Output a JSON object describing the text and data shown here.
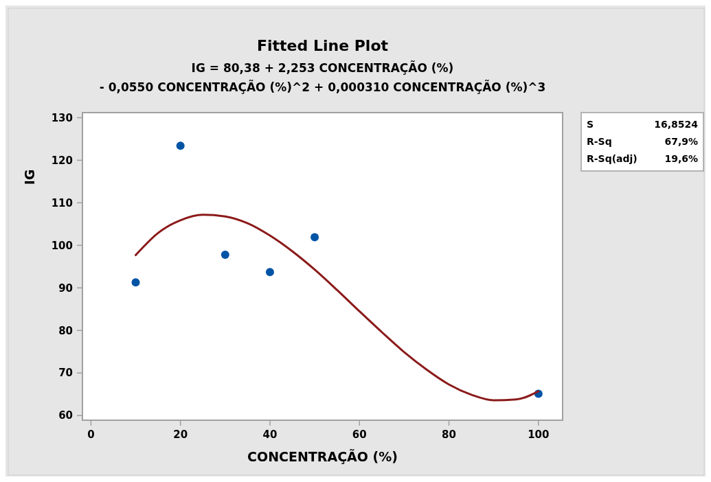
{
  "chart_data": {
    "type": "scatter",
    "title": "Fitted Line Plot",
    "subtitle": "IG = 80,38 + 2,253 CONCENTRAÇÃO (%)\n- 0,0550 CONCENTRAÇÃO (%)^2 + 0,000310 CONCENTRAÇÃO (%)^3",
    "xlabel": "CONCENTRAÇÃO (%)",
    "ylabel": "IG",
    "annotations": [
      "S 16,8524",
      "R-Sq 67,9%",
      "R-Sq(adj) 19,6%"
    ],
    "series": [
      {
        "color": "#0054a6",
        "marker": "circle",
        "x": [
          10,
          20,
          30,
          40,
          50,
          100
        ],
        "values": [
          91.3,
          123.4,
          97.8,
          93.7,
          101.9,
          65.1
        ]
      },
      {
        "type": "line",
        "color": "#8b1a1a",
        "line_style": "solid",
        "x": [
          10,
          15,
          20,
          25,
          30,
          35,
          40,
          45,
          50,
          55,
          60,
          65,
          70,
          75,
          80,
          85,
          90,
          95,
          100
        ],
        "values": [
          97.7,
          102.9,
          105.9,
          107.2,
          106.8,
          105.2,
          102.3,
          98.6,
          94.3,
          89.5,
          84.5,
          79.6,
          74.9,
          70.8,
          67.3,
          64.9,
          63.6,
          63.8,
          65.7
        ]
      }
    ],
    "xlim": [
      -1.9,
      105.4
    ],
    "xticks": [
      0,
      20,
      40,
      60,
      80,
      100
    ],
    "ylim": [
      58.9,
      131.2
    ],
    "yticks": [
      60,
      70,
      80,
      90,
      100,
      110,
      120,
      130
    ],
    "grid": false
  }
}
